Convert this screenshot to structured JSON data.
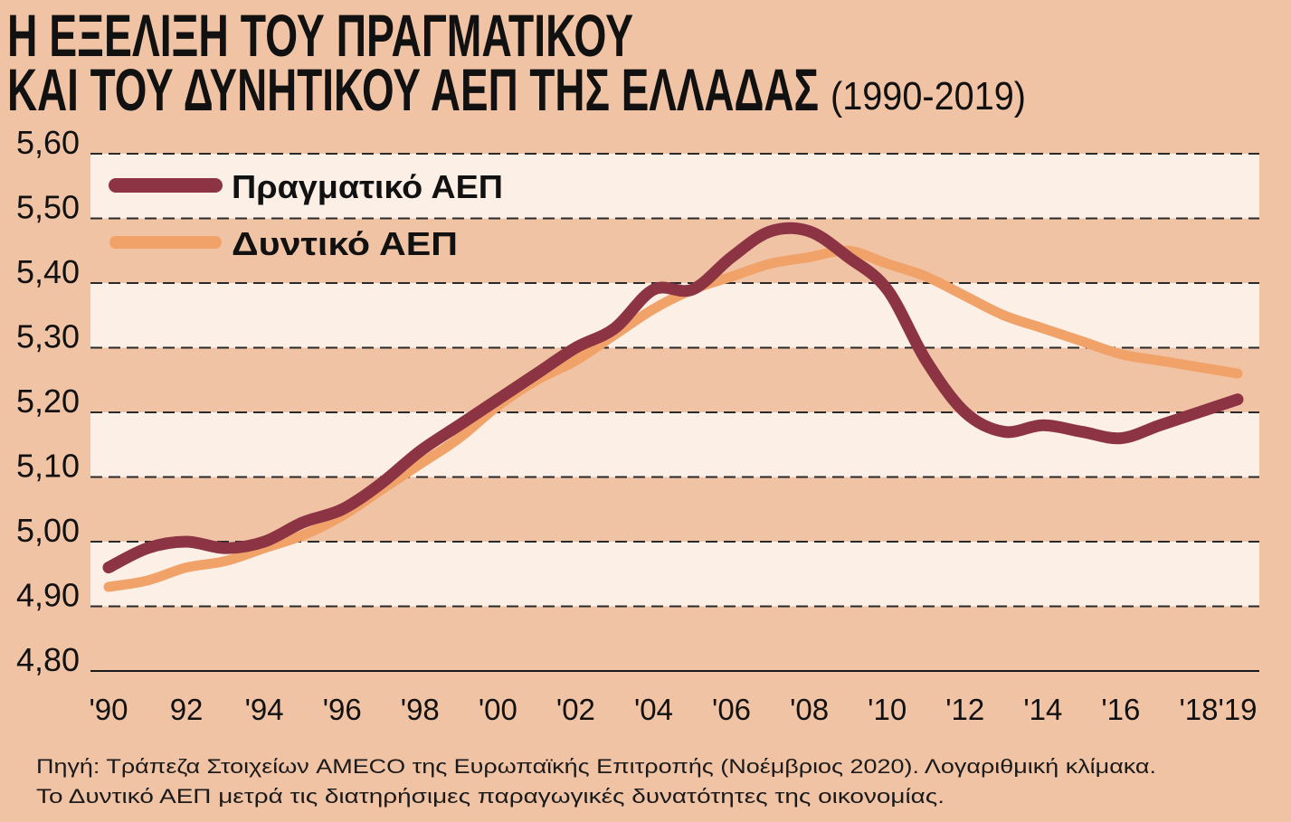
{
  "chart_data": {
    "type": "line",
    "title": {
      "line1": "Η ΕΞΕΛΙΞΗ ΤΟΥ ΠΡΑΓΜΑΤΙΚΟΥ",
      "line2": "ΚΑΙ ΤΟΥ ΔΥΝΗΤΙΚΟΥ ΑΕΠ ΤΗΣ ΕΛΛΑΔΑΣ",
      "period": "(1990-2019)"
    },
    "xlim": [
      1990,
      2019
    ],
    "ylim": [
      4.8,
      5.6
    ],
    "grid": true,
    "legend_position": "top-left",
    "x": [
      1990,
      1991,
      1992,
      1993,
      1994,
      1995,
      1996,
      1997,
      1998,
      1999,
      2000,
      2001,
      2002,
      2003,
      2004,
      2005,
      2006,
      2007,
      2008,
      2009,
      2010,
      2011,
      2012,
      2013,
      2014,
      2015,
      2016,
      2017,
      2018,
      2019
    ],
    "x_ticks": [
      {
        "value": 1990,
        "label": "'90"
      },
      {
        "value": 1992,
        "label": "92"
      },
      {
        "value": 1994,
        "label": "'94"
      },
      {
        "value": 1996,
        "label": "'96"
      },
      {
        "value": 1998,
        "label": "'98"
      },
      {
        "value": 2000,
        "label": "'00"
      },
      {
        "value": 2002,
        "label": "'02"
      },
      {
        "value": 2004,
        "label": "'04"
      },
      {
        "value": 2006,
        "label": "'06"
      },
      {
        "value": 2008,
        "label": "'08"
      },
      {
        "value": 2010,
        "label": "'10"
      },
      {
        "value": 2012,
        "label": "'12"
      },
      {
        "value": 2014,
        "label": "'14"
      },
      {
        "value": 2016,
        "label": "'16"
      },
      {
        "value": 2018,
        "label": "'18"
      },
      {
        "value": 2019,
        "label": "'19"
      }
    ],
    "y_ticks": [
      {
        "value": 4.8,
        "label": "4,80"
      },
      {
        "value": 4.9,
        "label": "4,90"
      },
      {
        "value": 5.0,
        "label": "5,00"
      },
      {
        "value": 5.1,
        "label": "5,10"
      },
      {
        "value": 5.2,
        "label": "5,20"
      },
      {
        "value": 5.3,
        "label": "5,30"
      },
      {
        "value": 5.4,
        "label": "5,40"
      },
      {
        "value": 5.5,
        "label": "5,50"
      },
      {
        "value": 5.6,
        "label": "5,60"
      }
    ],
    "series": [
      {
        "name": "Πραγματικό ΑΕΠ",
        "color": "#8c3344",
        "values": [
          4.96,
          4.99,
          5.0,
          4.99,
          5.0,
          5.03,
          5.05,
          5.09,
          5.14,
          5.18,
          5.22,
          5.26,
          5.3,
          5.33,
          5.39,
          5.39,
          5.44,
          5.48,
          5.48,
          5.44,
          5.39,
          5.28,
          5.2,
          5.17,
          5.18,
          5.17,
          5.16,
          5.18,
          5.2,
          5.22
        ]
      },
      {
        "name": "Δυντικό ΑΕΠ",
        "color": "#f0a268",
        "values": [
          4.93,
          4.94,
          4.96,
          4.97,
          4.99,
          5.01,
          5.04,
          5.08,
          5.12,
          5.16,
          5.21,
          5.25,
          5.28,
          5.32,
          5.36,
          5.39,
          5.41,
          5.43,
          5.44,
          5.45,
          5.43,
          5.41,
          5.38,
          5.35,
          5.33,
          5.31,
          5.29,
          5.28,
          5.27,
          5.26
        ]
      }
    ]
  },
  "footnote": {
    "source": "Πηγή: Τράπεζα Στοιχείων AMECO της Ευρωπαϊκής Επιτροπής (Νοέμβριος 2020). Λογαριθμική κλίμακα.",
    "note": "Το Δυντικό ΑΕΠ μετρά τις διατηρήσιμες παραγωγικές δυνατότητες της οικονομίας."
  },
  "colors": {
    "background": "#f1c3a5",
    "band": "#fbefe6",
    "text": "#111111"
  }
}
